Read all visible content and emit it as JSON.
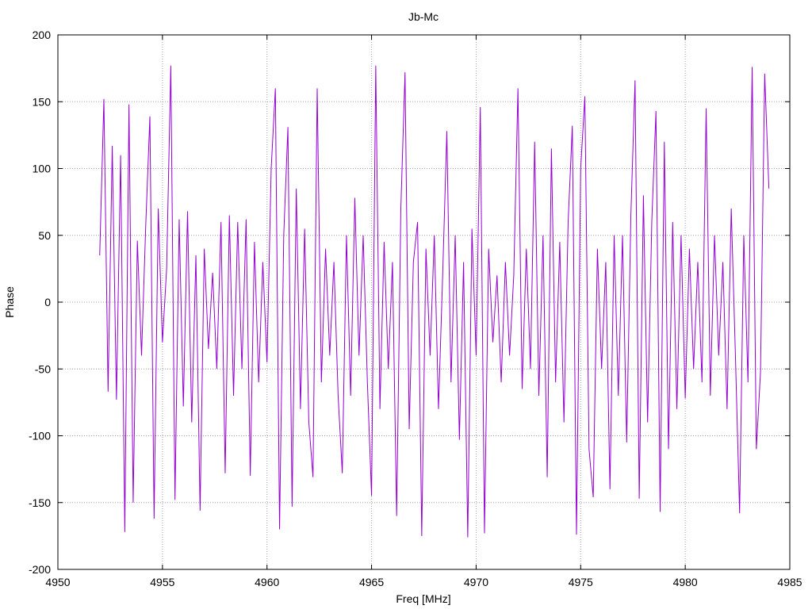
{
  "chart_data": {
    "type": "line",
    "title": "Jb-Mc",
    "xlabel": "Freq [MHz]",
    "ylabel": "Phase",
    "xlim": [
      4950,
      4985
    ],
    "ylim": [
      -200,
      200
    ],
    "xticks": [
      4950,
      4955,
      4960,
      4965,
      4970,
      4975,
      4980,
      4985
    ],
    "yticks": [
      -200,
      -150,
      -100,
      -50,
      0,
      50,
      100,
      150,
      200
    ],
    "grid": true,
    "legend": "none",
    "series": [
      {
        "name": "Jb-Mc",
        "color": "#9400d3",
        "x_start": 4952.0,
        "x_step": 0.2,
        "values": [
          35,
          152,
          -67,
          117,
          -73,
          110,
          -172,
          148,
          -150,
          46,
          -40,
          57,
          139,
          -162,
          70,
          -30,
          25,
          177,
          -148,
          62,
          -78,
          68,
          -90,
          35,
          -156,
          40,
          -35,
          22,
          -50,
          60,
          -128,
          65,
          -70,
          60,
          -50,
          62,
          -130,
          45,
          -60,
          30,
          -45,
          100,
          160,
          -170,
          50,
          131,
          -153,
          85,
          -80,
          55,
          -90,
          -131,
          160,
          -60,
          40,
          -40,
          30,
          -70,
          -128,
          50,
          -70,
          78,
          -40,
          50,
          -60,
          -145,
          177,
          -80,
          45,
          -50,
          30,
          -160,
          70,
          172,
          -95,
          30,
          60,
          -175,
          40,
          -40,
          50,
          -80,
          20,
          128,
          -60,
          50,
          -103,
          30,
          -176,
          55,
          -40,
          146,
          -173,
          40,
          -30,
          20,
          -60,
          30,
          -40,
          20,
          160,
          -65,
          40,
          -50,
          120,
          -70,
          50,
          -131,
          115,
          -60,
          45,
          -90,
          60,
          132,
          -174,
          100,
          154,
          -110,
          -146,
          40,
          -50,
          30,
          -140,
          50,
          -70,
          50,
          -105,
          65,
          166,
          -147,
          80,
          -90,
          60,
          143,
          -157,
          120,
          -110,
          60,
          -80,
          50,
          -72,
          40,
          -50,
          30,
          -60,
          145,
          -70,
          50,
          -40,
          30,
          -80,
          70,
          -40,
          -158,
          50,
          -60,
          176,
          -110,
          -52,
          171,
          85
        ]
      }
    ]
  }
}
